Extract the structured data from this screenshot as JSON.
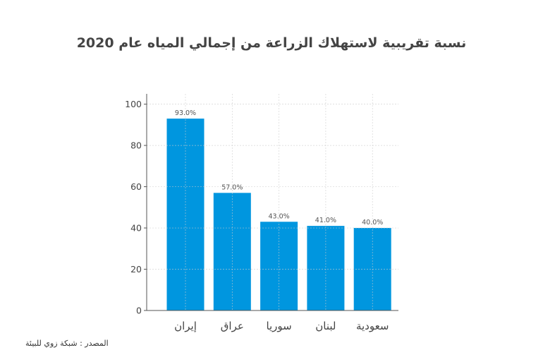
{
  "chart_data": {
    "type": "bar",
    "title": "نسبة تقريبية لاستهلاك الزراعة من إجمالي المياه عام 2020",
    "categories": [
      "إيران",
      "عراق",
      "سوريا",
      "لبنان",
      "سعودية"
    ],
    "values": [
      93,
      57,
      43,
      41,
      40
    ],
    "data_labels": [
      "93.0%",
      "57.0%",
      "43.0%",
      "41.0%",
      "40.0%"
    ],
    "xlabel": "",
    "ylabel": "",
    "ylim": [
      0,
      105
    ],
    "yticks": [
      0,
      20,
      40,
      60,
      80,
      100
    ],
    "grid": true,
    "bar_color": "#0096df"
  },
  "source": "المصدر : شبكة زوي للبيئة"
}
